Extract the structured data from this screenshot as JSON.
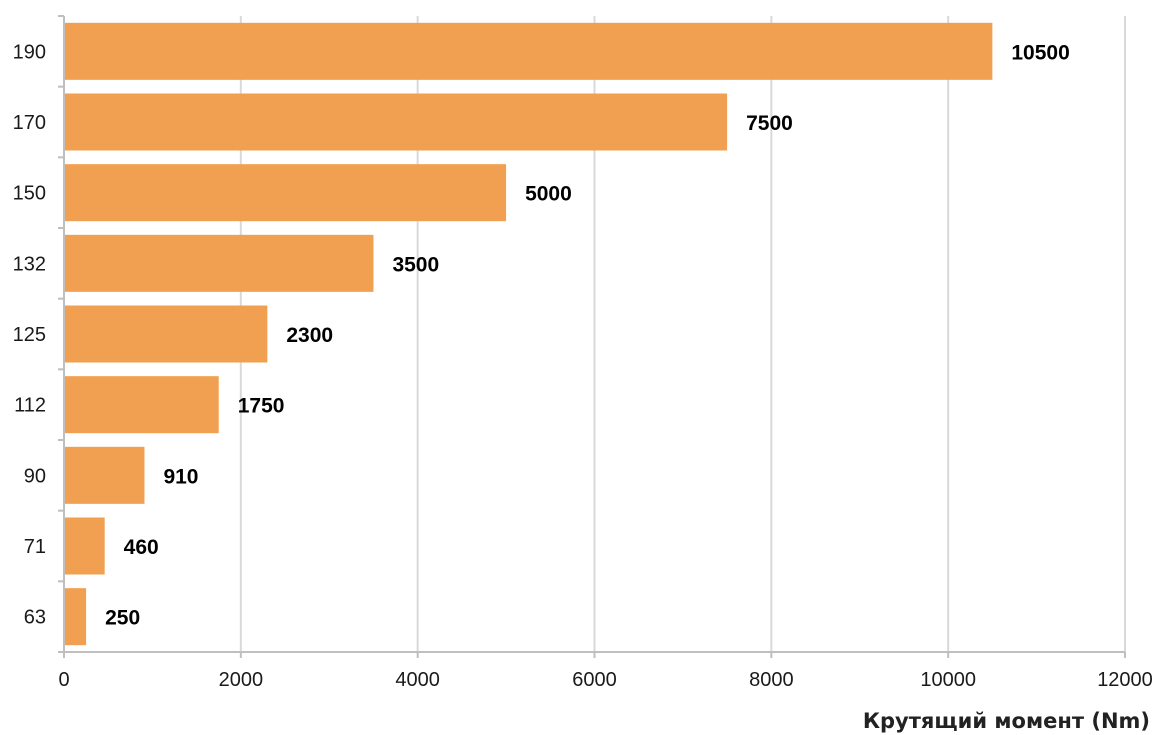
{
  "chart_data": {
    "type": "bar",
    "orientation": "horizontal",
    "categories": [
      "190",
      "170",
      "150",
      "132",
      "125",
      "112",
      "90",
      "71",
      "63"
    ],
    "values": [
      10500,
      7500,
      5000,
      3500,
      2300,
      1750,
      910,
      460,
      250
    ],
    "data_labels": [
      "10500",
      "7500",
      "5000",
      "3500",
      "2300",
      "1750",
      "910",
      "460",
      "250"
    ],
    "title": "",
    "xlabel": "Крутящий момент (Nm)",
    "ylabel": "",
    "xlim": [
      0,
      12000
    ],
    "xticks": [
      "0",
      "2000",
      "4000",
      "6000",
      "8000",
      "10000",
      "12000"
    ],
    "grid": "vertical",
    "legend": "none",
    "colors": {
      "bar": "#F0A050",
      "grid": "#d9d9d9",
      "axis": "#bfbfbf"
    }
  }
}
